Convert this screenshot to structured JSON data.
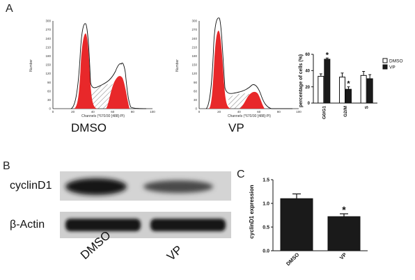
{
  "panel_a": {
    "letter": "A",
    "histograms": [
      {
        "label": "DMSO",
        "y_axis_title": "Number",
        "x_axis_title": "Channels (*670/30 [488]-PI)",
        "y_ticks": [
          "300",
          "270",
          "240",
          "210",
          "180",
          "150",
          "120",
          "90",
          "60",
          "30",
          "0"
        ],
        "x_ticks": [
          "0",
          "20",
          "40",
          "60",
          "80",
          "100"
        ]
      },
      {
        "label": "VP",
        "y_axis_title": "Number",
        "x_axis_title": "Channels (*670/30 [488]-PI)",
        "y_ticks": [
          "300",
          "270",
          "240",
          "210",
          "180",
          "150",
          "120",
          "90",
          "60",
          "30",
          "0"
        ],
        "x_ticks": [
          "0",
          "20",
          "40",
          "60",
          "80",
          "100"
        ]
      }
    ]
  },
  "panel_b": {
    "letter": "B",
    "rows": [
      {
        "label": "cyclinD1"
      },
      {
        "label": "β-Actin"
      }
    ],
    "lanes": [
      "DMSO",
      "VP"
    ]
  },
  "panel_c": {
    "letter": "C"
  },
  "chart_data": [
    {
      "type": "bar",
      "title": "",
      "xlabel": "",
      "ylabel": "percentage of cells (%)",
      "ylim": [
        0,
        60
      ],
      "yticks": [
        0,
        20,
        40,
        60
      ],
      "categories": [
        "G0/G1",
        "G2/M",
        "S"
      ],
      "series": [
        {
          "name": "DMSO",
          "values": [
            33,
            32,
            34
          ],
          "errors": [
            3,
            5,
            5
          ],
          "color": "#ffffff"
        },
        {
          "name": "VP",
          "values": [
            54,
            17,
            30
          ],
          "errors": [
            1.5,
            3,
            5
          ],
          "color": "#1a1a1a"
        }
      ],
      "significance": [
        "*",
        "*",
        ""
      ],
      "legend_position": "top-right",
      "grid": false
    },
    {
      "type": "bar",
      "title": "",
      "xlabel": "",
      "ylabel": "cyclinD1 expression",
      "ylim": [
        0,
        1.5
      ],
      "yticks": [
        0,
        0.5,
        1.0,
        1.5
      ],
      "categories": [
        "DMSO",
        "VP"
      ],
      "values": [
        1.1,
        0.72
      ],
      "errors": [
        0.1,
        0.06
      ],
      "color": "#1a1a1a",
      "significance": [
        "",
        "*"
      ],
      "grid": false
    }
  ]
}
